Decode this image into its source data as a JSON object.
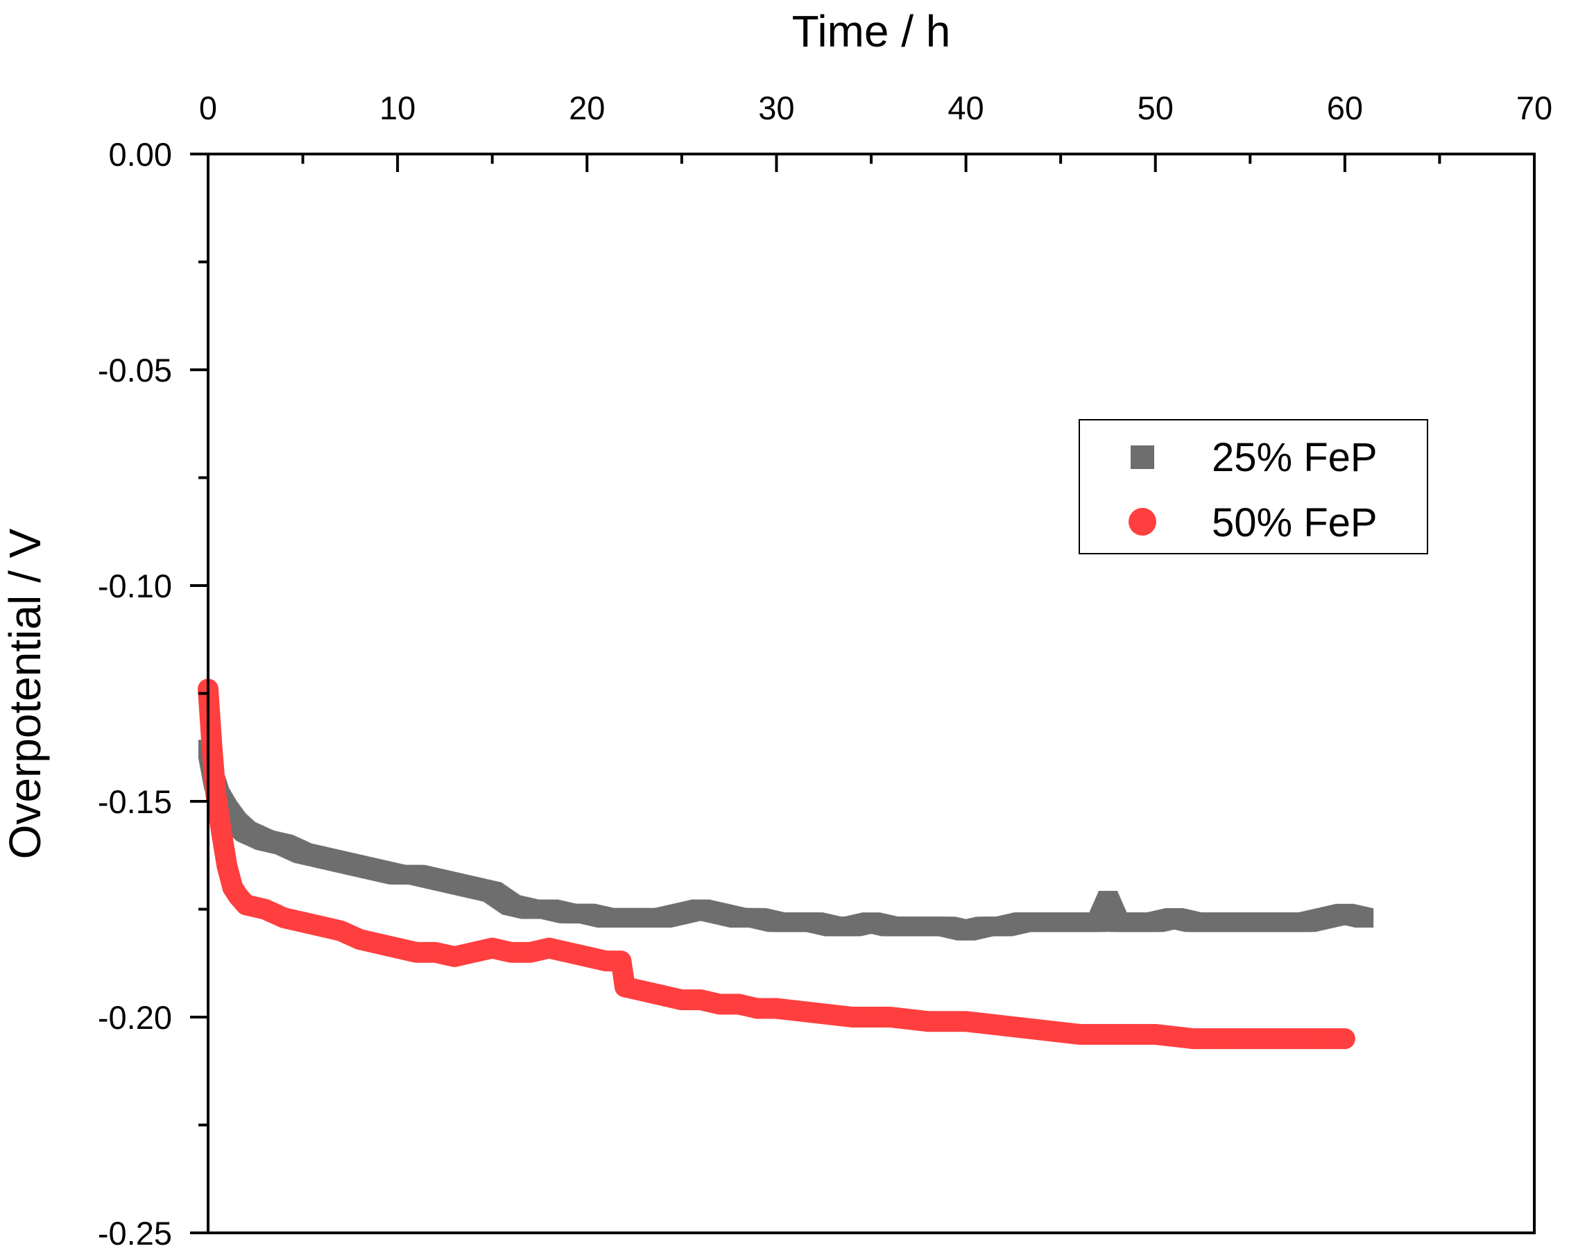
{
  "chart_data": {
    "type": "scatter",
    "title": "",
    "xlabel": "Time / h",
    "ylabel": "Overpotential / V",
    "xlim": [
      0,
      70
    ],
    "ylim": [
      -0.25,
      0.0
    ],
    "x_ticks": [
      0,
      10,
      20,
      30,
      40,
      50,
      60,
      70
    ],
    "x_tick_labels": [
      "0",
      "10",
      "20",
      "30",
      "40",
      "50",
      "60",
      "70"
    ],
    "y_ticks": [
      0.0,
      -0.05,
      -0.1,
      -0.15,
      -0.2,
      -0.25
    ],
    "y_tick_labels": [
      "0.00",
      "-0.05",
      "-0.10",
      "-0.15",
      "-0.20",
      "-0.25"
    ],
    "x_axis_position": "top",
    "grid": false,
    "legend_position": "right-middle",
    "series": [
      {
        "name": "25% FeP",
        "marker": "square",
        "color": "#6e6e6e",
        "x": [
          0,
          0.3,
          0.6,
          1,
          1.5,
          2,
          3,
          4,
          5,
          6,
          7,
          8,
          9,
          10,
          11,
          12,
          13,
          14,
          15,
          16,
          17,
          18,
          19,
          20,
          21,
          22,
          23,
          24,
          25,
          26,
          27,
          28,
          29,
          30,
          31,
          32,
          33,
          34,
          35,
          36,
          37,
          38,
          39,
          40,
          41,
          42,
          43,
          44,
          45,
          46,
          47,
          47.5,
          48,
          49,
          50,
          51,
          52,
          53,
          54,
          55,
          56,
          57,
          58,
          59,
          60,
          61
        ],
        "y": [
          -0.138,
          -0.145,
          -0.149,
          -0.152,
          -0.155,
          -0.157,
          -0.159,
          -0.16,
          -0.162,
          -0.163,
          -0.164,
          -0.165,
          -0.166,
          -0.167,
          -0.167,
          -0.168,
          -0.169,
          -0.17,
          -0.171,
          -0.174,
          -0.175,
          -0.175,
          -0.176,
          -0.176,
          -0.177,
          -0.177,
          -0.177,
          -0.177,
          -0.176,
          -0.175,
          -0.176,
          -0.177,
          -0.177,
          -0.178,
          -0.178,
          -0.178,
          -0.179,
          -0.179,
          -0.178,
          -0.179,
          -0.179,
          -0.179,
          -0.179,
          -0.18,
          -0.179,
          -0.179,
          -0.178,
          -0.178,
          -0.178,
          -0.178,
          -0.178,
          -0.173,
          -0.178,
          -0.178,
          -0.178,
          -0.177,
          -0.178,
          -0.178,
          -0.178,
          -0.178,
          -0.178,
          -0.178,
          -0.178,
          -0.177,
          -0.176,
          -0.177
        ]
      },
      {
        "name": "50% FeP",
        "marker": "circle",
        "color": "#ff3f3f",
        "x": [
          0,
          0.2,
          0.4,
          0.7,
          1,
          1.3,
          1.6,
          2,
          3,
          4,
          5,
          6,
          7,
          8,
          9,
          10,
          11,
          12,
          13,
          14,
          15,
          16,
          17,
          18,
          19,
          20,
          21,
          21.8,
          22,
          23,
          24,
          25,
          26,
          27,
          28,
          29,
          30,
          32,
          34,
          36,
          38,
          40,
          42,
          44,
          46,
          48,
          50,
          52,
          54,
          56,
          58,
          60
        ],
        "y": [
          -0.124,
          -0.137,
          -0.148,
          -0.157,
          -0.165,
          -0.17,
          -0.172,
          -0.174,
          -0.175,
          -0.177,
          -0.178,
          -0.179,
          -0.18,
          -0.182,
          -0.183,
          -0.184,
          -0.185,
          -0.185,
          -0.186,
          -0.185,
          -0.184,
          -0.185,
          -0.185,
          -0.184,
          -0.185,
          -0.186,
          -0.187,
          -0.187,
          -0.193,
          -0.194,
          -0.195,
          -0.196,
          -0.196,
          -0.197,
          -0.197,
          -0.198,
          -0.198,
          -0.199,
          -0.2,
          -0.2,
          -0.201,
          -0.201,
          -0.202,
          -0.203,
          -0.204,
          -0.204,
          -0.204,
          -0.205,
          -0.205,
          -0.205,
          -0.205,
          -0.205
        ]
      }
    ]
  }
}
